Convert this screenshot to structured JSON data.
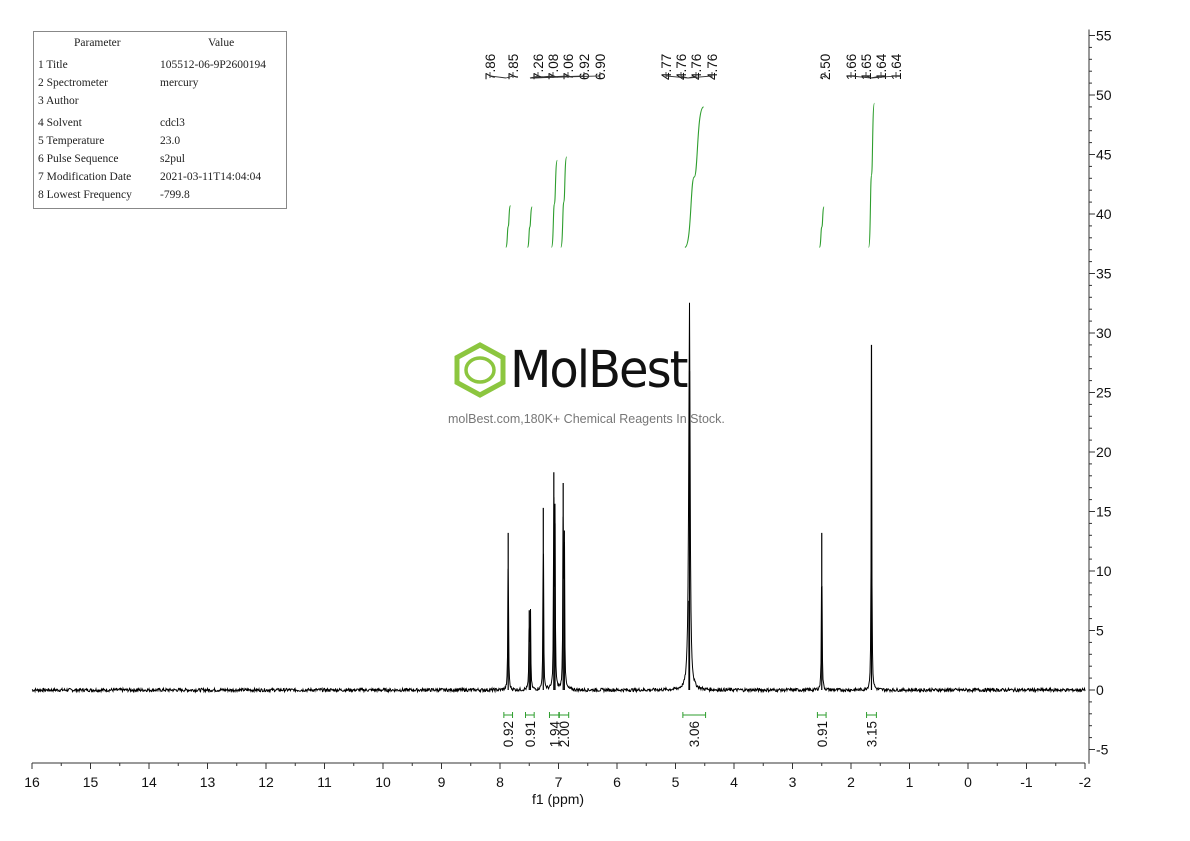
{
  "parameters": {
    "header": {
      "param": "Parameter",
      "value": "Value"
    },
    "rows": [
      {
        "label": "1 Title",
        "value": "105512-06-9P2600194"
      },
      {
        "label": "2 Spectrometer",
        "value": "mercury"
      },
      {
        "label": "3 Author",
        "value": ""
      },
      {
        "label": "4 Solvent",
        "value": "cdcl3"
      },
      {
        "label": "5 Temperature",
        "value": "23.0"
      },
      {
        "label": "6 Pulse Sequence",
        "value": "s2pul"
      },
      {
        "label": "7 Modification Date",
        "value": "2021-03-11T14:04:04"
      },
      {
        "label": "8 Lowest Frequency",
        "value": "-799.8"
      }
    ]
  },
  "watermark": {
    "brand": "MolBest",
    "tagline": "molBest.com,180K+ Chemical Reagents In Stock."
  },
  "colors": {
    "spectrum": "#000000",
    "integral": "#2e9e2e",
    "logo": "#8cc63f"
  },
  "chart_data": {
    "type": "line",
    "xlabel": "f1 (ppm)",
    "xlim": [
      16,
      -2
    ],
    "ylim": [
      -6,
      55
    ],
    "x_ticks": [
      "16",
      "15",
      "14",
      "13",
      "12",
      "11",
      "10",
      "9",
      "8",
      "7",
      "6",
      "5",
      "4",
      "3",
      "2",
      "1",
      "0",
      "-1",
      "-2"
    ],
    "y_ticks": [
      "-5",
      "0",
      "5",
      "10",
      "15",
      "20",
      "25",
      "30",
      "35",
      "40",
      "45",
      "50",
      "55"
    ],
    "peaks": [
      {
        "ppm": 7.86,
        "height": 13.2
      },
      {
        "ppm": 7.5,
        "height": 6.7
      },
      {
        "ppm": 7.48,
        "height": 6.7
      },
      {
        "ppm": 7.26,
        "height": 15.3
      },
      {
        "ppm": 7.08,
        "height": 18.3
      },
      {
        "ppm": 7.06,
        "height": 14.0
      },
      {
        "ppm": 6.92,
        "height": 17.4
      },
      {
        "ppm": 6.9,
        "height": 13.4
      },
      {
        "ppm": 4.77,
        "height": 7.5
      },
      {
        "ppm": 4.76,
        "height": 26.8
      },
      {
        "ppm": 2.5,
        "height": 13.2
      },
      {
        "ppm": 1.65,
        "height": 29.0
      }
    ],
    "peak_labels": [
      {
        "group": [
          "7.86",
          "7.85"
        ]
      },
      {
        "group": [
          "7.26",
          "7.08",
          "7.06",
          "6.92",
          "6.90"
        ]
      },
      {
        "group": [
          "4.77",
          "4.76",
          "4.76",
          "4.76"
        ]
      },
      {
        "group": [
          "2.50"
        ]
      },
      {
        "group": [
          "1.66",
          "1.65",
          "1.64",
          "1.64"
        ]
      }
    ],
    "integrals": [
      {
        "from": 7.9,
        "to": 7.82,
        "value": "0.92",
        "rise": [
          37.2,
          40.7
        ]
      },
      {
        "from": 7.53,
        "to": 7.45,
        "value": "0.91",
        "rise": [
          37.2,
          40.6
        ]
      },
      {
        "from": 7.12,
        "to": 7.02,
        "value": "1.94",
        "rise": [
          37.2,
          44.5
        ]
      },
      {
        "from": 6.96,
        "to": 6.86,
        "value": "2.00",
        "rise": [
          37.2,
          44.8
        ]
      },
      {
        "from": 4.84,
        "to": 4.52,
        "value": "3.06",
        "rise": [
          37.2,
          49.0
        ]
      },
      {
        "from": 2.54,
        "to": 2.46,
        "value": "0.91",
        "rise": [
          37.2,
          40.6
        ]
      },
      {
        "from": 1.7,
        "to": 1.6,
        "value": "3.15",
        "rise": [
          37.2,
          49.3
        ]
      }
    ]
  }
}
